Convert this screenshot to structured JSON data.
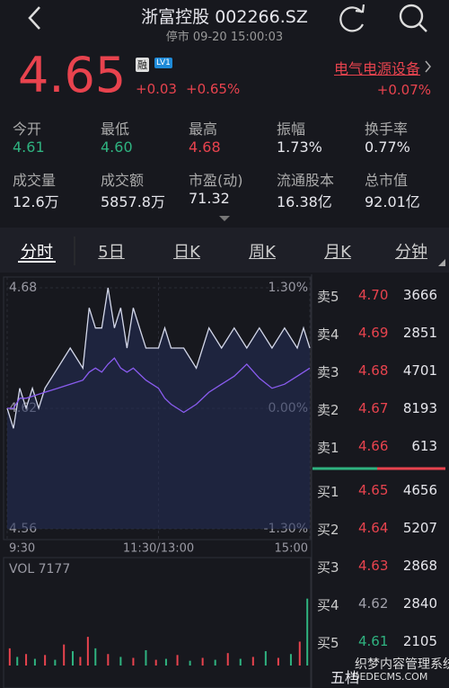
{
  "header": {
    "title": "浙富控股 002266.SZ",
    "status": "停市 09-20 15:00:03"
  },
  "quote": {
    "price": "4.65",
    "badge": "融",
    "level": "LV1",
    "change": "+0.03",
    "change_pct": "+0.65%",
    "sector": "电气电源设备",
    "sector_change": "+0.07%"
  },
  "stats": [
    {
      "label": "今开",
      "value": "4.61",
      "color": "#2fb380"
    },
    {
      "label": "最低",
      "value": "4.60",
      "color": "#2fb380"
    },
    {
      "label": "最高",
      "value": "4.68",
      "color": "#e8434e"
    },
    {
      "label": "振幅",
      "value": "1.73%",
      "color": "#e6e6ec"
    },
    {
      "label": "换手率",
      "value": "0.77%",
      "color": "#e6e6ec"
    },
    {
      "label": "成交量",
      "value": "12.6万",
      "color": "#e6e6ec"
    },
    {
      "label": "成交额",
      "value": "5857.8万",
      "color": "#e6e6ec"
    },
    {
      "label": "市盈(动)",
      "value": "71.32",
      "color": "#e6e6ec"
    },
    {
      "label": "流通股本",
      "value": "16.38亿",
      "color": "#e6e6ec"
    },
    {
      "label": "总市值",
      "value": "92.01亿",
      "color": "#e6e6ec"
    }
  ],
  "tabs": [
    "分时",
    "5日",
    "日K",
    "周K",
    "月K",
    "分钟"
  ],
  "chart_data": {
    "type": "line",
    "x": [
      0,
      5,
      10,
      15,
      20,
      25,
      30,
      40,
      50,
      60,
      65,
      70,
      75,
      80,
      85,
      90,
      95,
      100,
      105,
      110,
      120,
      125,
      130,
      140,
      150,
      160,
      170,
      180,
      190,
      200,
      210,
      220,
      230,
      235,
      240
    ],
    "xlim": [
      0,
      240
    ],
    "xticks": [
      {
        "value": 0,
        "label": "9:30"
      },
      {
        "value": 120,
        "label": "11:30/13:00"
      },
      {
        "value": 240,
        "label": "15:00"
      }
    ],
    "ylim": [
      4.56,
      4.68
    ],
    "yticks": [
      4.68,
      4.62,
      4.56
    ],
    "y2lim": [
      -1.3,
      1.3
    ],
    "y2ticks": [
      {
        "value": 1.3,
        "label": "1.30%"
      },
      {
        "value": 0,
        "label": "0.00%"
      },
      {
        "value": -1.3,
        "label": "-1.30%"
      }
    ],
    "series": [
      {
        "color": "#d4d8ea",
        "values": [
          4.62,
          4.61,
          4.63,
          4.62,
          4.63,
          4.62,
          4.63,
          4.64,
          4.65,
          4.64,
          4.67,
          4.66,
          4.66,
          4.68,
          4.66,
          4.67,
          4.65,
          4.67,
          4.66,
          4.65,
          4.65,
          4.66,
          4.65,
          4.65,
          4.64,
          4.66,
          4.65,
          4.66,
          4.65,
          4.66,
          4.65,
          4.66,
          4.65,
          4.66,
          4.65
        ]
      },
      {
        "color": "#8a5cf0",
        "values": [
          4.62,
          4.62,
          4.625,
          4.625,
          4.626,
          4.627,
          4.628,
          4.63,
          4.632,
          4.634,
          4.638,
          4.64,
          4.638,
          4.642,
          4.645,
          4.64,
          4.638,
          4.64,
          4.637,
          4.634,
          4.63,
          4.625,
          4.622,
          4.618,
          4.622,
          4.628,
          4.632,
          4.636,
          4.642,
          4.635,
          4.63,
          4.632,
          4.636,
          4.638,
          4.64
        ]
      }
    ]
  },
  "volume": {
    "label": "VOL 7177",
    "ylim": [
      0,
      800
    ],
    "x": [
      2,
      8,
      15,
      22,
      30,
      38,
      45,
      52,
      58,
      64,
      70,
      80,
      90,
      100,
      110,
      118,
      126,
      135,
      145,
      155,
      165,
      175,
      185,
      195,
      205,
      215,
      225,
      232,
      238
    ],
    "values": [
      180,
      90,
      120,
      70,
      110,
      60,
      220,
      150,
      90,
      300,
      180,
      120,
      90,
      80,
      160,
      60,
      70,
      110,
      50,
      80,
      60,
      130,
      70,
      90,
      150,
      80,
      120,
      250,
      700
    ],
    "colors": [
      "#e8434e",
      "#2fb380",
      "#e8434e",
      "#2fb380",
      "#e8434e",
      "#2fb380",
      "#e8434e",
      "#2fb380",
      "#e8434e",
      "#e8434e",
      "#2fb380",
      "#e8434e",
      "#2fb380",
      "#e8434e",
      "#2fb380",
      "#e8434e",
      "#2fb380",
      "#e8434e",
      "#2fb380",
      "#e8434e",
      "#2fb380",
      "#e8434e",
      "#2fb380",
      "#e8434e",
      "#2fb380",
      "#e8434e",
      "#2fb380",
      "#e8434e",
      "#2fb380"
    ]
  },
  "order_book": {
    "sell": [
      {
        "label": "卖5",
        "price": "4.70",
        "volume": "3666",
        "color": "#e8434e"
      },
      {
        "label": "卖4",
        "price": "4.69",
        "volume": "2851",
        "color": "#e8434e"
      },
      {
        "label": "卖3",
        "price": "4.68",
        "volume": "4701",
        "color": "#e8434e"
      },
      {
        "label": "卖2",
        "price": "4.67",
        "volume": "8193",
        "color": "#e8434e"
      },
      {
        "label": "卖1",
        "price": "4.66",
        "volume": "613",
        "color": "#e8434e"
      }
    ],
    "buy": [
      {
        "label": "买1",
        "price": "4.65",
        "volume": "4656",
        "color": "#e8434e"
      },
      {
        "label": "买2",
        "price": "4.64",
        "volume": "5207",
        "color": "#e8434e"
      },
      {
        "label": "买3",
        "price": "4.63",
        "volume": "2868",
        "color": "#e8434e"
      },
      {
        "label": "买4",
        "price": "4.62",
        "volume": "2840",
        "color": "#a0a0aa"
      },
      {
        "label": "买5",
        "price": "4.61",
        "volume": "2105",
        "color": "#2fb380"
      }
    ]
  },
  "footer": {
    "tab": "五档"
  },
  "watermark": {
    "line1": "织梦内容管理系统",
    "line2": "DEDECMS.COM"
  }
}
